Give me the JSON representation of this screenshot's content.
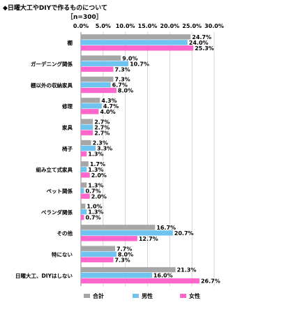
{
  "chart_data": {
    "type": "bar",
    "orientation": "horizontal",
    "title": "◆日曜大工やDIYで作るものについて",
    "subtitle": "［n=300］",
    "xlim": [
      0,
      30
    ],
    "xticks": [
      0,
      5,
      10,
      15,
      20,
      25,
      30
    ],
    "xtick_labels": [
      "0.0%",
      "5.0%",
      "10.0%",
      "15.0%",
      "20.0%",
      "25.0%",
      "30.0%"
    ],
    "grid": true,
    "legend_position": "bottom",
    "categories": [
      "棚",
      "ガーデニング関係",
      "棚以外の収納家具",
      "修理",
      "家具",
      "椅子",
      "組み立て式家具",
      "ペット関係",
      "ベランダ関係",
      "その他",
      "特にない",
      "日曜大工、DIYはしない"
    ],
    "series": [
      {
        "name": "合計",
        "color": "#a6a6a6",
        "values": [
          24.7,
          9.0,
          7.3,
          4.3,
          2.7,
          2.3,
          1.7,
          1.3,
          1.0,
          16.7,
          7.7,
          21.3
        ]
      },
      {
        "name": "男性",
        "color": "#6fc3f0",
        "values": [
          24.0,
          10.7,
          6.7,
          4.7,
          2.7,
          3.3,
          1.3,
          0.7,
          1.3,
          20.7,
          8.0,
          16.0
        ]
      },
      {
        "name": "女性",
        "color": "#ff66cc",
        "values": [
          25.3,
          7.3,
          8.0,
          4.0,
          2.7,
          1.3,
          2.0,
          2.0,
          0.7,
          12.7,
          7.3,
          26.7
        ]
      }
    ]
  }
}
